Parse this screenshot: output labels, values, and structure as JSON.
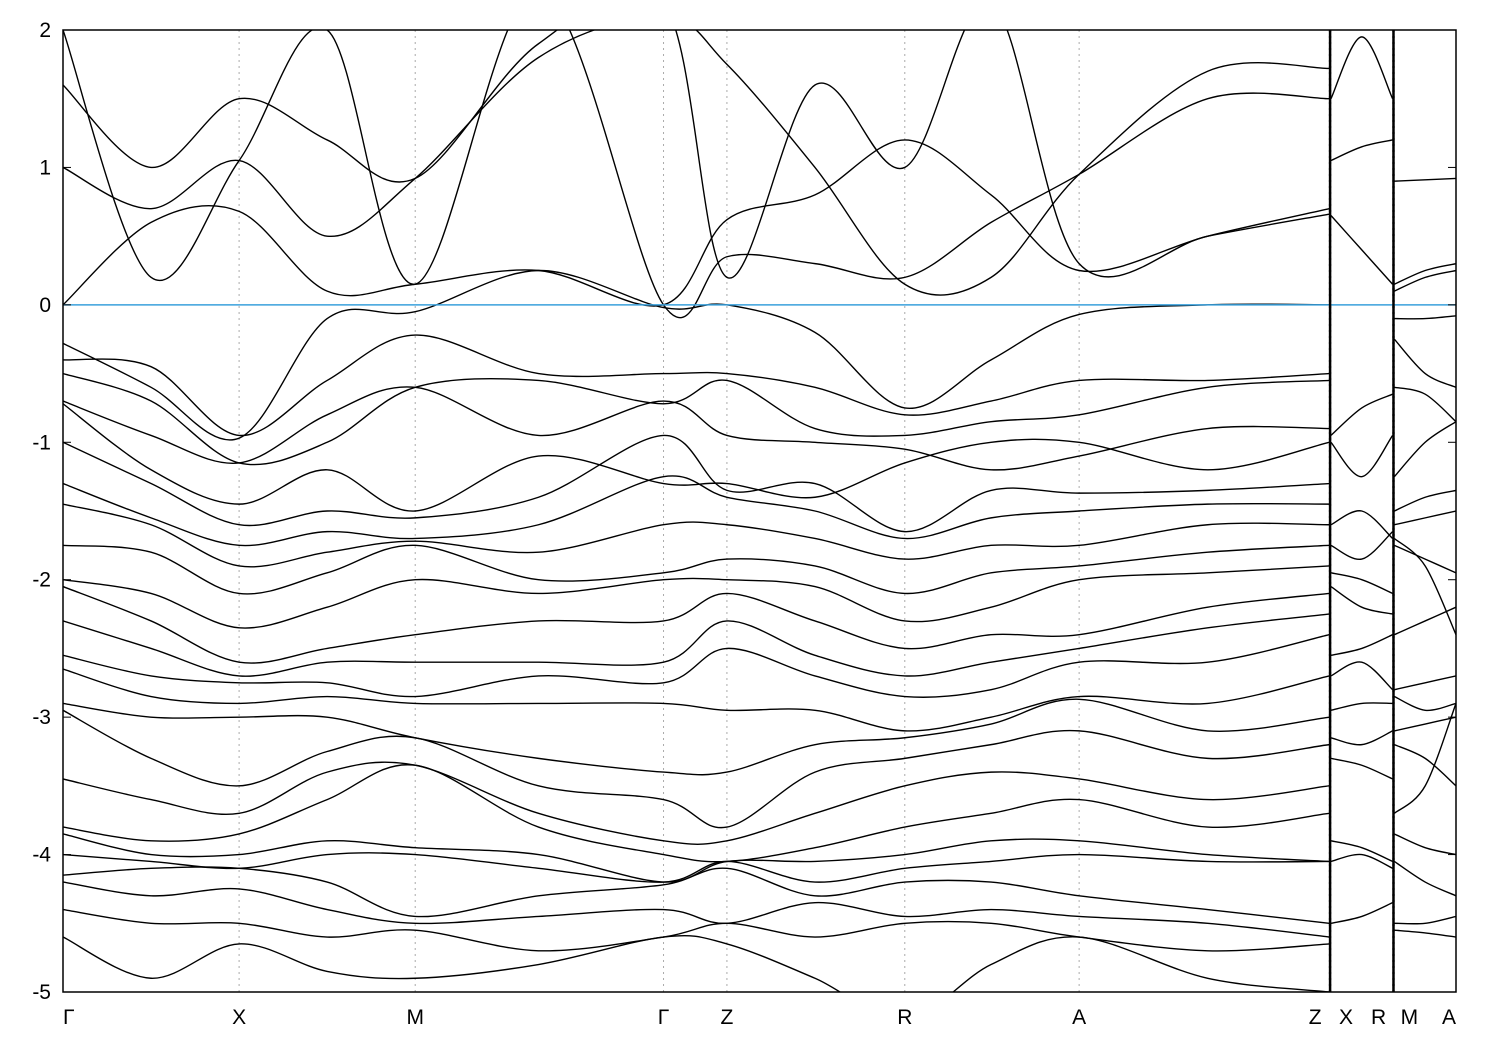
{
  "chart_data": {
    "type": "line",
    "title": "",
    "xlabel": "",
    "ylabel": "",
    "ylim": [
      -5,
      2
    ],
    "yticks": [
      -5,
      -4,
      -3,
      -2,
      -1,
      0,
      1,
      2
    ],
    "ytick_labels": [
      "-5",
      "-4",
      "-3",
      "-2",
      "-1",
      "0",
      "1",
      "2"
    ],
    "grid": "vertical dotted lines at high-symmetry points",
    "fermi_level": 0,
    "colors": {
      "bands": "#000000",
      "fermi_line": "#3aa0dc",
      "grid": "#aaaaaa"
    },
    "kpoints": [
      {
        "label": "Γ",
        "k": 0.0
      },
      {
        "label": "X",
        "k": 1.0
      },
      {
        "label": "M",
        "k": 2.0
      },
      {
        "label": "Γ",
        "k": 3.41
      },
      {
        "label": "Z",
        "k": 3.77
      },
      {
        "label": "R",
        "k": 4.78
      },
      {
        "label": "A",
        "k": 5.77
      },
      {
        "label": "Z",
        "k": 7.19
      },
      {
        "label": "X",
        "k": 7.2
      },
      {
        "label": "R",
        "k": 7.55
      },
      {
        "label": "M",
        "k": 7.56
      },
      {
        "label": "A",
        "k": 7.91
      }
    ],
    "segments": [
      {
        "k": [
          0.0,
          0.5,
          1.0,
          1.5,
          2.0,
          2.7,
          3.41,
          3.77,
          4.27,
          4.78,
          5.27,
          5.77,
          6.5,
          7.19
        ],
        "bands": [
          [
            0.0,
            0.6,
            0.68,
            0.1,
            0.15,
            0.25,
            0.0,
            0.62,
            0.8,
            1.2,
            0.8,
            0.25,
            0.5,
            0.7
          ],
          [
            1.0,
            0.7,
            1.05,
            0.5,
            0.92,
            1.8,
            2.1,
            1.75,
            1.0,
            0.15,
            0.2,
            0.95,
            1.7,
            1.72
          ],
          [
            1.6,
            1.0,
            1.5,
            1.2,
            0.92,
            1.9,
            2.2,
            0.2,
            1.6,
            1.0,
            2.2,
            0.3,
            0.5,
            0.66
          ],
          [
            2.0,
            0.2,
            1.05,
            2.0,
            0.15,
            2.3,
            0.0,
            0.35,
            0.3,
            0.2,
            0.6,
            0.95,
            1.5,
            1.5
          ],
          [
            -0.28,
            -0.6,
            -0.97,
            -0.1,
            -0.05,
            0.25,
            -0.02,
            0.0,
            -0.2,
            -0.75,
            -0.4,
            -0.07,
            0.0,
            0.0
          ],
          [
            -0.4,
            -0.45,
            -0.95,
            -0.55,
            -0.22,
            -0.5,
            -0.5,
            -0.5,
            -0.6,
            -0.8,
            -0.7,
            -0.55,
            -0.55,
            -0.5
          ],
          [
            -0.5,
            -0.7,
            -1.15,
            -1.0,
            -0.6,
            -0.55,
            -0.72,
            -0.55,
            -0.9,
            -0.95,
            -0.85,
            -0.8,
            -0.6,
            -0.55
          ],
          [
            -0.7,
            -0.95,
            -1.15,
            -0.8,
            -0.6,
            -0.95,
            -0.7,
            -0.95,
            -1.0,
            -1.05,
            -1.2,
            -1.1,
            -0.9,
            -0.9
          ],
          [
            -0.72,
            -1.2,
            -1.45,
            -1.2,
            -1.5,
            -1.1,
            -1.3,
            -1.3,
            -1.4,
            -1.15,
            -1.0,
            -1.0,
            -1.2,
            -1.0
          ],
          [
            -1.0,
            -1.3,
            -1.6,
            -1.5,
            -1.55,
            -1.4,
            -0.95,
            -1.35,
            -1.3,
            -1.65,
            -1.35,
            -1.37,
            -1.35,
            -1.3
          ],
          [
            -1.3,
            -1.55,
            -1.75,
            -1.65,
            -1.7,
            -1.6,
            -1.25,
            -1.4,
            -1.5,
            -1.7,
            -1.55,
            -1.5,
            -1.45,
            -1.45
          ],
          [
            -1.45,
            -1.6,
            -1.9,
            -1.8,
            -1.72,
            -1.8,
            -1.6,
            -1.6,
            -1.7,
            -1.85,
            -1.75,
            -1.75,
            -1.6,
            -1.6
          ],
          [
            -1.75,
            -1.8,
            -2.1,
            -1.95,
            -1.75,
            -2.0,
            -1.95,
            -1.85,
            -1.9,
            -2.1,
            -1.95,
            -1.9,
            -1.8,
            -1.75
          ],
          [
            -2.0,
            -2.1,
            -2.35,
            -2.2,
            -2.0,
            -2.1,
            -2.0,
            -2.0,
            -2.05,
            -2.3,
            -2.2,
            -2.0,
            -1.95,
            -1.9
          ],
          [
            -2.05,
            -2.3,
            -2.6,
            -2.5,
            -2.4,
            -2.3,
            -2.3,
            -2.1,
            -2.3,
            -2.5,
            -2.4,
            -2.4,
            -2.2,
            -2.1
          ],
          [
            -2.3,
            -2.5,
            -2.7,
            -2.6,
            -2.6,
            -2.6,
            -2.6,
            -2.3,
            -2.55,
            -2.7,
            -2.6,
            -2.5,
            -2.35,
            -2.25
          ],
          [
            -2.55,
            -2.7,
            -2.75,
            -2.75,
            -2.85,
            -2.7,
            -2.75,
            -2.5,
            -2.7,
            -2.85,
            -2.8,
            -2.6,
            -2.6,
            -2.4
          ],
          [
            -2.65,
            -2.85,
            -2.9,
            -2.85,
            -2.9,
            -2.9,
            -2.9,
            -2.95,
            -2.95,
            -3.1,
            -3.0,
            -2.85,
            -2.9,
            -2.7
          ],
          [
            -2.9,
            -3.0,
            -3.0,
            -3.0,
            -3.15,
            -3.3,
            -3.4,
            -3.4,
            -3.2,
            -3.15,
            -3.05,
            -2.87,
            -3.1,
            -3.0
          ],
          [
            -2.95,
            -3.3,
            -3.5,
            -3.25,
            -3.15,
            -3.5,
            -3.6,
            -3.8,
            -3.4,
            -3.3,
            -3.2,
            -3.1,
            -3.3,
            -3.2
          ],
          [
            -3.45,
            -3.6,
            -3.7,
            -3.4,
            -3.35,
            -3.7,
            -3.9,
            -3.9,
            -3.7,
            -3.5,
            -3.4,
            -3.45,
            -3.6,
            -3.5
          ],
          [
            -3.8,
            -3.9,
            -3.85,
            -3.6,
            -3.35,
            -3.8,
            -4.0,
            -4.05,
            -3.95,
            -3.8,
            -3.7,
            -3.6,
            -3.8,
            -3.7
          ],
          [
            -3.85,
            -4.0,
            -4.0,
            -3.9,
            -3.95,
            -4.0,
            -4.2,
            -4.05,
            -4.05,
            -4.0,
            -3.9,
            -3.9,
            -4.0,
            -4.05
          ],
          [
            -4.0,
            -4.05,
            -4.1,
            -4.0,
            -4.0,
            -4.1,
            -4.2,
            -4.05,
            -4.2,
            -4.1,
            -4.05,
            -4.0,
            -4.05,
            -4.05
          ],
          [
            -4.15,
            -4.1,
            -4.1,
            -4.2,
            -4.45,
            -4.3,
            -4.22,
            -4.1,
            -4.3,
            -4.2,
            -4.2,
            -4.3,
            -4.4,
            -4.5
          ],
          [
            -4.2,
            -4.3,
            -4.25,
            -4.4,
            -4.5,
            -4.45,
            -4.4,
            -4.5,
            -4.35,
            -4.45,
            -4.4,
            -4.45,
            -4.5,
            -4.6
          ],
          [
            -4.4,
            -4.5,
            -4.5,
            -4.6,
            -4.55,
            -4.7,
            -4.6,
            -4.5,
            -4.6,
            -4.5,
            -4.5,
            -4.6,
            -4.7,
            -4.65
          ],
          [
            -4.6,
            -4.9,
            -4.65,
            -4.85,
            -4.9,
            -4.8,
            -4.6,
            -4.65,
            -4.9,
            -5.2,
            -4.8,
            -4.6,
            -4.9,
            -5.0
          ]
        ]
      },
      {
        "k": [
          7.2,
          7.375,
          7.55
        ],
        "bands": [
          [
            1.5,
            1.95,
            1.5
          ],
          [
            1.05,
            1.15,
            1.2
          ],
          [
            0.65,
            0.4,
            0.15
          ],
          [
            -0.95,
            -0.75,
            -0.65
          ],
          [
            -1.0,
            -1.25,
            -0.95
          ],
          [
            -1.6,
            -1.5,
            -1.7
          ],
          [
            -1.75,
            -1.85,
            -1.65
          ],
          [
            -1.95,
            -2.0,
            -2.1
          ],
          [
            -2.05,
            -2.2,
            -2.25
          ],
          [
            -2.55,
            -2.5,
            -2.4
          ],
          [
            -2.7,
            -2.6,
            -2.8
          ],
          [
            -2.95,
            -2.9,
            -2.9
          ],
          [
            -3.15,
            -3.2,
            -3.1
          ],
          [
            -3.3,
            -3.35,
            -3.45
          ],
          [
            -3.9,
            -3.95,
            -4.05
          ],
          [
            -4.05,
            -4.0,
            -4.1
          ],
          [
            -4.5,
            -4.45,
            -4.35
          ]
        ]
      },
      {
        "k": [
          7.56,
          7.735,
          7.91
        ],
        "bands": [
          [
            0.9,
            0.91,
            0.92
          ],
          [
            0.15,
            0.25,
            0.3
          ],
          [
            0.1,
            0.2,
            0.25
          ],
          [
            -0.1,
            -0.1,
            -0.08
          ],
          [
            -0.25,
            -0.5,
            -0.6
          ],
          [
            -0.6,
            -0.65,
            -0.85
          ],
          [
            -1.25,
            -1.0,
            -0.85
          ],
          [
            -1.5,
            -1.4,
            -1.35
          ],
          [
            -1.6,
            -1.55,
            -1.5
          ],
          [
            -1.7,
            -1.9,
            -2.4
          ],
          [
            -1.75,
            -1.85,
            -1.95
          ],
          [
            -2.4,
            -2.3,
            -2.2
          ],
          [
            -2.8,
            -2.75,
            -2.7
          ],
          [
            -2.85,
            -2.95,
            -2.9
          ],
          [
            -3.1,
            -3.05,
            -3.0
          ],
          [
            -3.2,
            -3.3,
            -3.5
          ],
          [
            -3.7,
            -3.5,
            -2.9
          ],
          [
            -3.85,
            -3.95,
            -4.0
          ],
          [
            -4.05,
            -4.2,
            -4.3
          ],
          [
            -4.5,
            -4.5,
            -4.45
          ],
          [
            -4.55,
            -4.57,
            -4.6
          ]
        ]
      }
    ]
  }
}
